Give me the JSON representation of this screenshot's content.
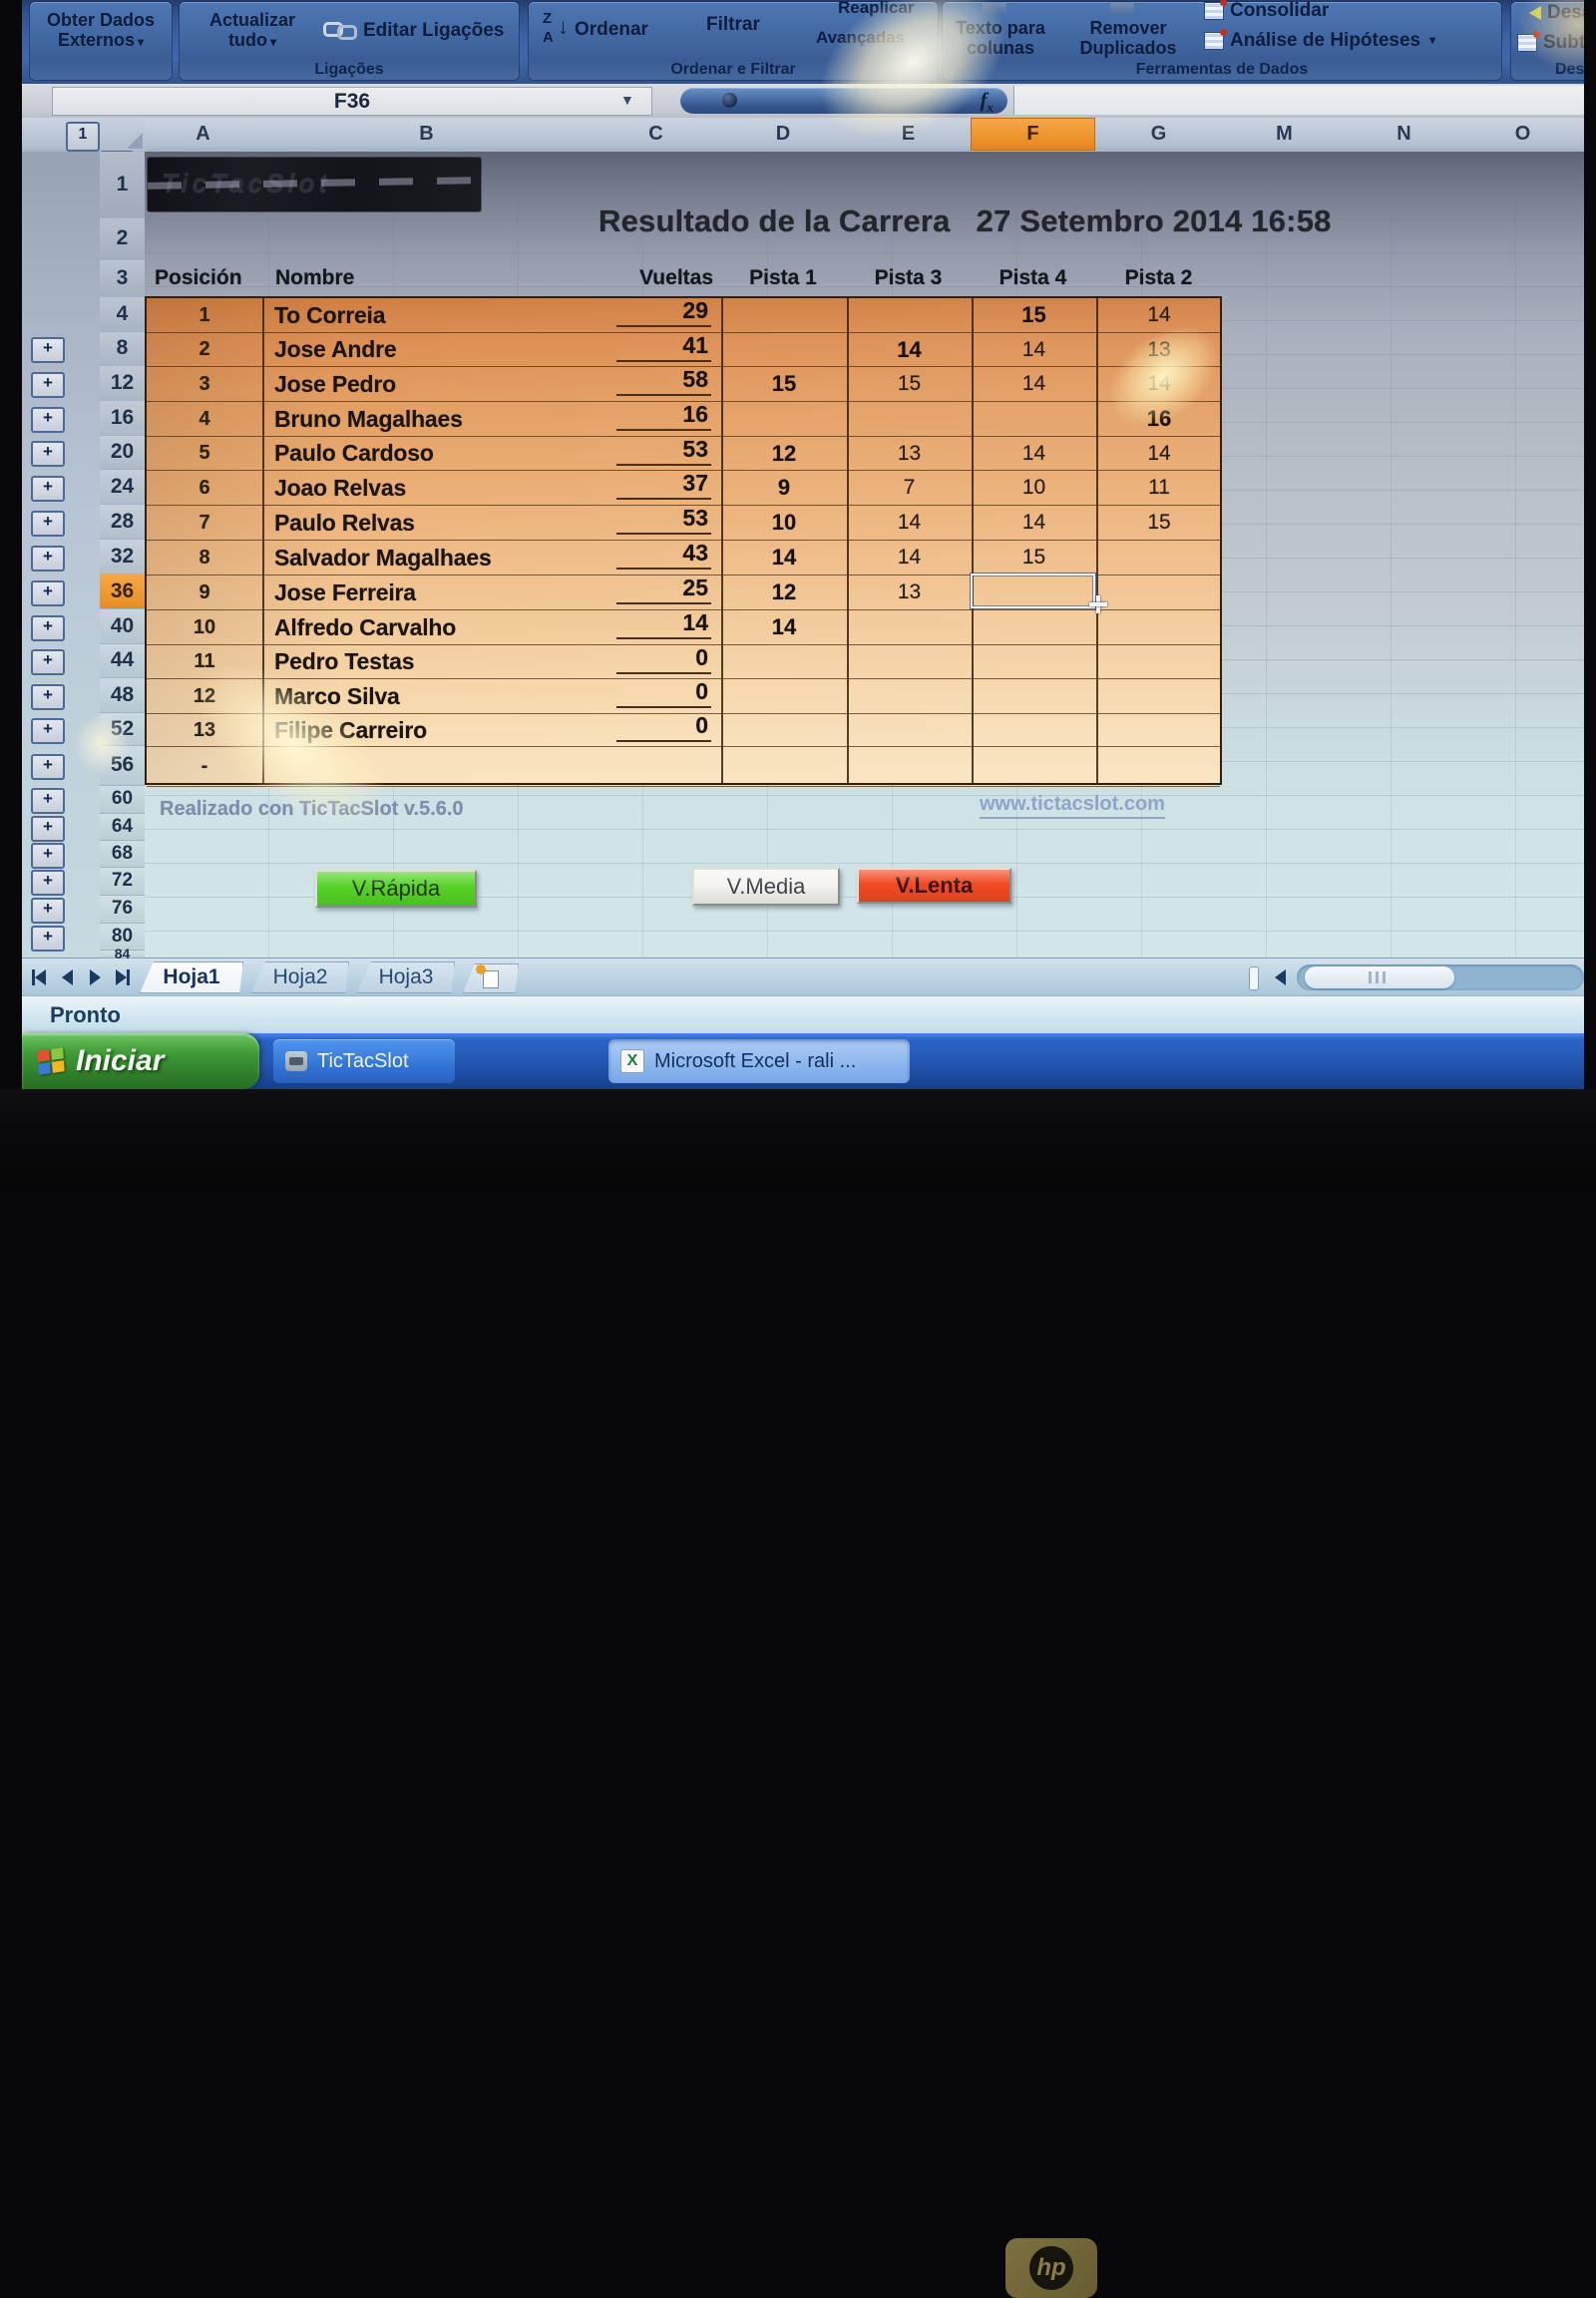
{
  "ribbon": {
    "obter_dados_label": "Obter Dados Externos",
    "actualizar_label": "Actualizar tudo",
    "editar_ligacoes_label": "Editar Ligações",
    "ligacoes_group": "Ligações",
    "ordenar_label": "Ordenar",
    "filtrar_label": "Filtrar",
    "reaplicar_label": "Reaplicar",
    "avancadas_label": "Avançadas",
    "ordenar_filtrar_group": "Ordenar e Filtrar",
    "texto_colunas_label": "Texto para colunas",
    "remover_duplicados_label": "Remover Duplicados",
    "consolidar_label": "Consolidar",
    "analise_label": "Análise de Hipóteses",
    "ferramentas_group": "Ferramentas de Dados",
    "desagrupar_label": "Desagrupar",
    "subtotal_label": "Subtotal",
    "destaque_group": "Destaque"
  },
  "formula_bar": {
    "name_box": "F36",
    "fx": "fx",
    "value": ""
  },
  "sheet": {
    "outline_buttons": [
      "1",
      "2"
    ],
    "column_letters": [
      "A",
      "B",
      "C",
      "D",
      "E",
      "F",
      "G",
      "M",
      "N",
      "O"
    ],
    "selected_column": "F",
    "row_numbers": [
      "1",
      "2",
      "3",
      "4",
      "8",
      "12",
      "16",
      "20",
      "24",
      "28",
      "32",
      "36",
      "40",
      "44",
      "48",
      "52",
      "56",
      "60",
      "64",
      "68",
      "72",
      "76",
      "80",
      "84"
    ],
    "selected_row": "36",
    "outline_plus_rows": [
      "8",
      "12",
      "16",
      "20",
      "24",
      "28",
      "32",
      "36",
      "40",
      "44",
      "48",
      "52",
      "56",
      "60",
      "64",
      "68",
      "72",
      "76",
      "80"
    ],
    "logo_text": "TicTacSlot",
    "title_left": "Resultado de la Carrera",
    "title_right": "27 Setembro 2014 16:58",
    "table": {
      "headers": [
        "Posición",
        "Nombre",
        "Vueltas",
        "Pista 1",
        "Pista 3",
        "Pista 4",
        "Pista 2"
      ],
      "rows": [
        {
          "pos": "1",
          "nombre": "To Correia",
          "vueltas": "29",
          "p1": "",
          "p3": "",
          "p4": "15",
          "p2": "14"
        },
        {
          "pos": "2",
          "nombre": "Jose Andre",
          "vueltas": "41",
          "p1": "",
          "p3": "14",
          "p4": "14",
          "p2": "13"
        },
        {
          "pos": "3",
          "nombre": "Jose Pedro",
          "vueltas": "58",
          "p1": "15",
          "p3": "15",
          "p4": "14",
          "p2": "14"
        },
        {
          "pos": "4",
          "nombre": "Bruno Magalhaes",
          "vueltas": "16",
          "p1": "",
          "p3": "",
          "p4": "",
          "p2": "16"
        },
        {
          "pos": "5",
          "nombre": "Paulo Cardoso",
          "vueltas": "53",
          "p1": "12",
          "p3": "13",
          "p4": "14",
          "p2": "14"
        },
        {
          "pos": "6",
          "nombre": "Joao Relvas",
          "vueltas": "37",
          "p1": "9",
          "p3": "7",
          "p4": "10",
          "p2": "11"
        },
        {
          "pos": "7",
          "nombre": "Paulo Relvas",
          "vueltas": "53",
          "p1": "10",
          "p3": "14",
          "p4": "14",
          "p2": "15"
        },
        {
          "pos": "8",
          "nombre": "Salvador Magalhaes",
          "vueltas": "43",
          "p1": "14",
          "p3": "14",
          "p4": "15",
          "p2": ""
        },
        {
          "pos": "9",
          "nombre": "Jose Ferreira",
          "vueltas": "25",
          "p1": "12",
          "p3": "13",
          "p4": "",
          "p2": ""
        },
        {
          "pos": "10",
          "nombre": "Alfredo Carvalho",
          "vueltas": "14",
          "p1": "14",
          "p3": "",
          "p4": "",
          "p2": ""
        },
        {
          "pos": "11",
          "nombre": "Pedro Testas",
          "vueltas": "0",
          "p1": "",
          "p3": "",
          "p4": "",
          "p2": ""
        },
        {
          "pos": "12",
          "nombre": "Marco Silva",
          "vueltas": "0",
          "p1": "",
          "p3": "",
          "p4": "",
          "p2": ""
        },
        {
          "pos": "13",
          "nombre": "Filipe Carreiro",
          "vueltas": "0",
          "p1": "",
          "p3": "",
          "p4": "",
          "p2": ""
        },
        {
          "pos": "-",
          "nombre": "",
          "vueltas": "",
          "p1": "",
          "p3": "",
          "p4": "",
          "p2": ""
        }
      ],
      "selected_cell": "F36"
    },
    "credit": "Realizado con TicTacSlot v.5.6.0",
    "link": "www.tictacslot.com",
    "speed_buttons": [
      {
        "label": "V.Rápida",
        "color": "#55d226"
      },
      {
        "label": "V.Media",
        "color": "#f4f3ef"
      },
      {
        "label": "V.Lenta",
        "color": "#f24a24"
      }
    ]
  },
  "tabs": {
    "sheets": [
      "Hoja1",
      "Hoja2",
      "Hoja3"
    ],
    "active": "Hoja1"
  },
  "status_bar": {
    "text": "Pronto"
  },
  "taskbar": {
    "start_label": "Iniciar",
    "tasks": [
      {
        "label": "TicTacSlot"
      },
      {
        "label": "Microsoft Excel - rali ..."
      }
    ]
  },
  "bezel": {
    "brand": "hp"
  }
}
